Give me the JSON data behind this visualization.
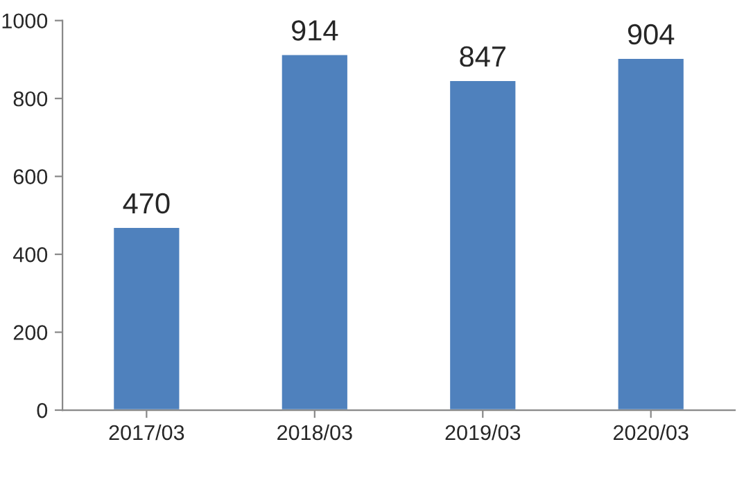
{
  "chart_data": {
    "type": "bar",
    "categories": [
      "2017/03",
      "2018/03",
      "2019/03",
      "2020/03"
    ],
    "values": [
      470,
      914,
      847,
      904
    ],
    "color": "#4f81bd",
    "ylim": [
      0,
      1000
    ],
    "yticks": [
      0,
      200,
      400,
      600,
      800,
      1000
    ],
    "data_labels": true,
    "grid": false,
    "legend": false
  }
}
